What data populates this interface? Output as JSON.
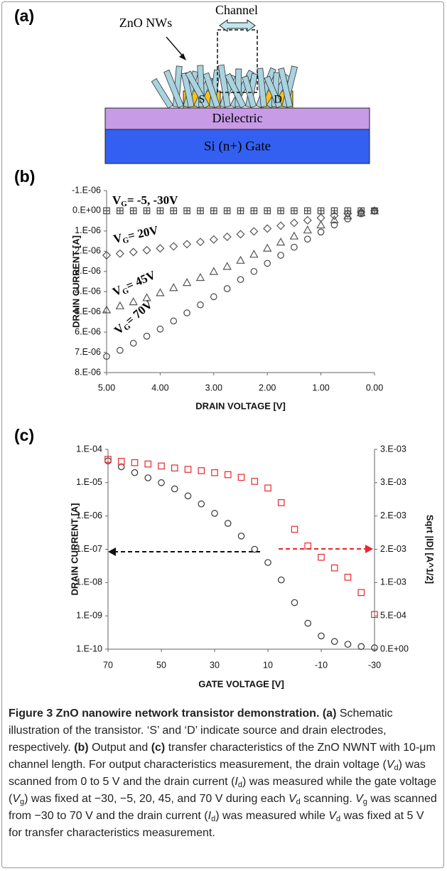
{
  "diagram": {
    "label": "(a)",
    "channel": "Channel",
    "nanowires": "ZnO NWs",
    "source": "S",
    "drain": "D",
    "dielectric": "Dielectric",
    "gate": "Si (n+) Gate"
  },
  "chart_data": [
    {
      "type": "scatter",
      "label": "(b)",
      "y_label": "DRAIN CURRENT [A]",
      "x_label": "DRAIN VOLTAGE [V]",
      "xlim": [
        5,
        0
      ],
      "xticks": [
        {
          "value": 5,
          "label": "5.00"
        },
        {
          "value": 4,
          "label": "4.00"
        },
        {
          "value": 3,
          "label": "3.00"
        },
        {
          "value": 2,
          "label": "2.00"
        },
        {
          "value": 1,
          "label": "1.00"
        },
        {
          "value": 0,
          "label": "0.00"
        }
      ],
      "ylim": [
        8e-06,
        -1e-06
      ],
      "yticks": [
        {
          "value": -1e-06,
          "label": "-1.E-06"
        },
        {
          "value": 0,
          "label": "0.E+00"
        },
        {
          "value": 1e-06,
          "label": "1.E-06"
        },
        {
          "value": 2e-06,
          "label": "2.E-06"
        },
        {
          "value": 3e-06,
          "label": "3.E-06"
        },
        {
          "value": 4e-06,
          "label": "4.E-06"
        },
        {
          "value": 5e-06,
          "label": "5.E-06"
        },
        {
          "value": 6e-06,
          "label": "6.E-06"
        },
        {
          "value": 7e-06,
          "label": "7.E-06"
        },
        {
          "value": 8e-06,
          "label": "8.E-06"
        }
      ],
      "log": false,
      "x": [
        5,
        4.75,
        4.5,
        4.25,
        4,
        3.75,
        3.5,
        3.25,
        3,
        2.75,
        2.5,
        2.25,
        2,
        1.75,
        1.5,
        1.25,
        1,
        0.75,
        0.5,
        0.25,
        0
      ],
      "series": [
        {
          "color": "#444444",
          "marker": "square",
          "values": [
            0,
            0,
            0,
            0,
            0,
            0,
            0,
            0,
            0,
            0,
            0,
            0,
            0,
            0,
            0,
            0,
            0,
            0,
            0,
            0,
            0
          ]
        },
        {
          "color": "#444444",
          "marker": "plus",
          "values": [
            0,
            0,
            0,
            0,
            0,
            0,
            0,
            0,
            0,
            0,
            0,
            0,
            0,
            0,
            0,
            0,
            0,
            0,
            0,
            0,
            0
          ]
        },
        {
          "color": "#555555",
          "marker": "diamond",
          "values": [
            2.2e-06,
            2.12e-06,
            2.04e-06,
            1.95e-06,
            1.86e-06,
            1.76e-06,
            1.65e-06,
            1.54e-06,
            1.42e-06,
            1.29e-06,
            1.16e-06,
            1.02e-06,
            8.8e-07,
            7.4e-07,
            6e-07,
            4.7e-07,
            3.5e-07,
            2.4e-07,
            1.4e-07,
            6e-08,
            0
          ]
        },
        {
          "color": "#555555",
          "marker": "triangle",
          "values": [
            4.9e-06,
            4.7e-06,
            4.5e-06,
            4.3e-06,
            4.05e-06,
            3.8e-06,
            3.55e-06,
            3.3e-06,
            3e-06,
            2.75e-06,
            2.45e-06,
            2.15e-06,
            1.85e-06,
            1.55e-06,
            1.25e-06,
            9.5e-07,
            7e-07,
            4.5e-07,
            2.5e-07,
            1e-07,
            0
          ]
        },
        {
          "color": "#444444",
          "marker": "circle",
          "values": [
            7.2e-06,
            6.9e-06,
            6.55e-06,
            6.2e-06,
            5.85e-06,
            5.45e-06,
            5.05e-06,
            4.65e-06,
            4.25e-06,
            3.85e-06,
            3.4e-06,
            3e-06,
            2.6e-06,
            2.2e-06,
            1.8e-06,
            1.4e-06,
            1.05e-06,
            7e-07,
            4e-07,
            1.5e-07,
            0
          ]
        }
      ],
      "annotations": [
        {
          "main": "V",
          "sub": "G",
          "rest": "= -5, -30V"
        },
        {
          "main": "V",
          "sub": "G",
          "rest": "= 20V"
        },
        {
          "main": "V",
          "sub": "G",
          "rest": "= 45V"
        },
        {
          "main": "V",
          "sub": "G",
          "rest": "= 70V"
        }
      ]
    },
    {
      "type": "scatter",
      "label": "(c)",
      "y_label": "DRAIN CURRENT [A]",
      "y2_label": "Sqrt |ID| [A^1/2]",
      "x_label": "GATE VOLTAGE [V]",
      "xlim": [
        70,
        -30
      ],
      "xticks": [
        70,
        50,
        30,
        10,
        -10,
        -30
      ],
      "ylim": [
        1e-10,
        0.0001
      ],
      "log": true,
      "yticks": [
        {
          "value": 0.0001,
          "label": "1.E-04"
        },
        {
          "value": 1e-05,
          "label": "1.E-05"
        },
        {
          "value": 1e-06,
          "label": "1.E-06"
        },
        {
          "value": 1e-07,
          "label": "1.E-07"
        },
        {
          "value": 1e-08,
          "label": "1.E-08"
        },
        {
          "value": 1e-09,
          "label": "1.E-09"
        },
        {
          "value": 1e-10,
          "label": "1.E-10"
        }
      ],
      "y2lim": [
        0,
        0.003
      ],
      "y2ticks": [
        {
          "value": 0.003,
          "label": "3.E-03"
        },
        {
          "value": 0.0025,
          "label": "3.E-03"
        },
        {
          "value": 0.002,
          "label": "2.E-03"
        },
        {
          "value": 0.0015,
          "label": "2.E-03"
        },
        {
          "value": 0.001,
          "label": "1.E-03"
        },
        {
          "value": 0.0005,
          "label": "5.E-04"
        },
        {
          "value": 0,
          "label": "0.E+00"
        }
      ],
      "x": [
        70,
        65,
        60,
        55,
        50,
        45,
        40,
        35,
        30,
        25,
        20,
        15,
        10,
        5,
        0,
        -5,
        -10,
        -15,
        -20,
        -25,
        -30
      ],
      "series": [
        {
          "color": "#333333",
          "marker": "circle",
          "values": [
            4.5e-05,
            3e-05,
            2e-05,
            1.4e-05,
            1e-05,
            6.5e-06,
            4e-06,
            2.3e-06,
            1.2e-06,
            6e-07,
            2.5e-07,
            1e-07,
            4e-08,
            1.2e-08,
            2.5e-09,
            6e-10,
            2.5e-10,
            1.7e-10,
            1.4e-10,
            1.2e-10,
            1.1e-10
          ]
        },
        {
          "color": "#e8262b",
          "marker": "square",
          "axis": "y2",
          "values": [
            0.00285,
            0.00282,
            0.0028,
            0.00278,
            0.00275,
            0.00272,
            0.0027,
            0.00268,
            0.00265,
            0.00262,
            0.00258,
            0.00252,
            0.00242,
            0.0022,
            0.0018,
            0.00155,
            0.00138,
            0.00122,
            0.00108,
            0.00085,
            0.00052
          ]
        }
      ]
    }
  ],
  "caption": {
    "runs": [
      {
        "text": "Figure 3 ZnO nanowire network transistor demonstration. ",
        "bold": true
      },
      {
        "text": "(a)",
        "bold": true
      },
      {
        "text": " Schematic illustration of the transistor. ‘S’ and ‘D’ indicate source and drain electrodes, respectively. "
      },
      {
        "text": "(b)",
        "bold": true
      },
      {
        "text": " Output and "
      },
      {
        "text": "(c)",
        "bold": true
      },
      {
        "text": " transfer characteristics of the ZnO NWNT with 10-μm channel length. For output characteristics measurement, the drain voltage ("
      },
      {
        "text": "V",
        "italic": true
      },
      {
        "text": "d",
        "sub": true
      },
      {
        "text": ") was scanned from 0 to 5 V and the drain current ("
      },
      {
        "text": "I",
        "italic": true
      },
      {
        "text": "d",
        "sub": true
      },
      {
        "text": ") was measured while the gate voltage ("
      },
      {
        "text": "V",
        "italic": true
      },
      {
        "text": "g",
        "sub": true
      },
      {
        "text": ") was fixed at −30, −5, 20, 45, and 70 V during each "
      },
      {
        "text": "V",
        "italic": true
      },
      {
        "text": "d",
        "sub": true
      },
      {
        "text": " scanning. "
      },
      {
        "text": "V",
        "italic": true
      },
      {
        "text": "g",
        "sub": true
      },
      {
        "text": " was scanned from −30 to 70 V and the drain current ("
      },
      {
        "text": "I",
        "italic": true
      },
      {
        "text": "d",
        "sub": true
      },
      {
        "text": ") was measured while "
      },
      {
        "text": "V",
        "italic": true
      },
      {
        "text": "d",
        "sub": true
      },
      {
        "text": " was fixed at 5 V for transfer characteristics measurement."
      }
    ]
  }
}
